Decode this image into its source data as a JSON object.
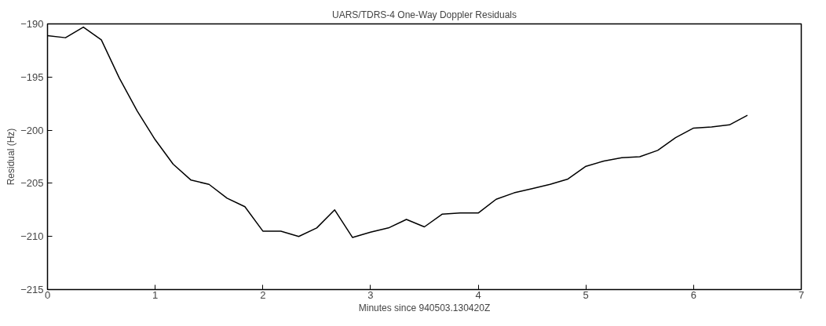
{
  "chart_data": {
    "type": "line",
    "title": "UARS/TDRS-4 One-Way Doppler Residuals",
    "xlabel": "Minutes since 940503.130420Z",
    "ylabel": "Residual (Hz)",
    "x": [
      0,
      0.167,
      0.333,
      0.5,
      0.667,
      0.833,
      1.0,
      1.167,
      1.333,
      1.5,
      1.667,
      1.833,
      2.0,
      2.167,
      2.333,
      2.5,
      2.667,
      2.833,
      3.0,
      3.167,
      3.333,
      3.5,
      3.667,
      3.833,
      4.0,
      4.167,
      4.333,
      4.5,
      4.667,
      4.833,
      5.0,
      5.167,
      5.333,
      5.5,
      5.667,
      5.833,
      6.0,
      6.167,
      6.333,
      6.5
    ],
    "series": [
      {
        "color": "#000000",
        "values": [
          -191.1,
          -191.3,
          -190.3,
          -191.5,
          -195.1,
          -198.2,
          -200.9,
          -203.2,
          -204.7,
          -205.1,
          -206.4,
          -207.2,
          -209.5,
          -209.5,
          -210.0,
          -209.2,
          -207.5,
          -210.1,
          -209.6,
          -209.2,
          -208.4,
          -209.1,
          -207.9,
          -207.8,
          -207.8,
          -206.5,
          -205.9,
          -205.5,
          -205.1,
          -204.6,
          -203.4,
          -202.9,
          -202.6,
          -202.5,
          -201.9,
          -200.7,
          -199.8,
          -199.7,
          -199.5,
          -198.6
        ]
      }
    ],
    "xlim": [
      0,
      7
    ],
    "ylim": [
      -215,
      -190
    ],
    "xticks": [
      0,
      1,
      2,
      3,
      4,
      5,
      6,
      7
    ],
    "yticks": [
      -215,
      -210,
      -205,
      -200,
      -195,
      -190
    ],
    "grid": false,
    "line_style": "solid",
    "marker": "none"
  }
}
